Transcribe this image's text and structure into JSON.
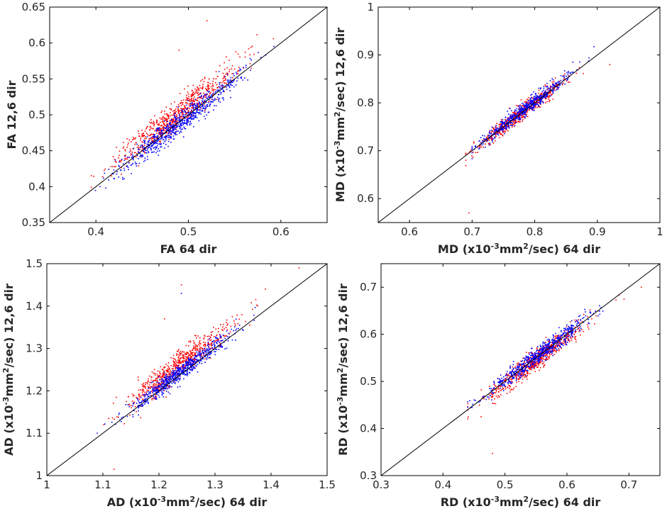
{
  "colors": {
    "series_a": "#ff0000",
    "series_b": "#0000ff",
    "identity": "#000000"
  },
  "chart_data": [
    {
      "type": "scatter",
      "name": "fa",
      "xlabel": "FA 64 dir",
      "ylabel": "FA 12,6 dir",
      "xlim": [
        0.35,
        0.65
      ],
      "ylim": [
        0.35,
        0.65
      ],
      "xticks": [
        0.4,
        0.5,
        0.6
      ],
      "xtick_labels": [
        "0.4",
        "0.5",
        "0.6"
      ],
      "yticks": [
        0.35,
        0.4,
        0.45,
        0.5,
        0.55,
        0.6,
        0.65
      ],
      "ytick_labels": [
        "0.35",
        "0.4",
        "0.45",
        "0.5",
        "0.55",
        "0.6",
        "0.65"
      ],
      "identity_line": true,
      "series": [
        {
          "name": "series_a",
          "color": "#ff0000",
          "trend": {
            "x_center": 0.485,
            "x_spread": 0.033,
            "x_min": 0.395,
            "x_max": 0.59,
            "slope": 1.0,
            "offset": 0.013,
            "noise": 0.01
          },
          "n_points": 700,
          "outliers": [
            [
              0.52,
              0.631
            ],
            [
              0.49,
              0.59
            ],
            [
              0.592,
              0.606
            ]
          ]
        },
        {
          "name": "series_b",
          "color": "#0000ff",
          "trend": {
            "x_center": 0.49,
            "x_spread": 0.033,
            "x_min": 0.395,
            "x_max": 0.595,
            "slope": 1.0,
            "offset": -0.002,
            "noise": 0.008
          },
          "n_points": 700,
          "outliers": []
        }
      ]
    },
    {
      "type": "scatter",
      "name": "md",
      "xlabel": "MD (x10-3mm2/sec) 64 dir",
      "ylabel": "MD (x10-3mm2/sec) 12,6 dir",
      "xlim": [
        0.55,
        1.0
      ],
      "ylim": [
        0.55,
        1.0
      ],
      "xticks": [
        0.6,
        0.7,
        0.8,
        0.9,
        1.0
      ],
      "xtick_labels": [
        "0.6",
        "0.7",
        "0.8",
        "0.9",
        "1"
      ],
      "yticks": [
        0.6,
        0.7,
        0.8,
        0.9,
        1.0
      ],
      "ytick_labels": [
        "0.6",
        "0.7",
        "0.8",
        "0.9",
        "1"
      ],
      "identity_line": true,
      "series": [
        {
          "name": "series_a",
          "color": "#ff0000",
          "trend": {
            "x_center": 0.775,
            "x_spread": 0.035,
            "x_min": 0.69,
            "x_max": 0.94,
            "slope": 1.0,
            "offset": 0.0,
            "noise": 0.008
          },
          "n_points": 600,
          "outliers": [
            [
              0.695,
              0.57
            ],
            [
              0.92,
              0.88
            ]
          ]
        },
        {
          "name": "series_b",
          "color": "#0000ff",
          "trend": {
            "x_center": 0.78,
            "x_spread": 0.035,
            "x_min": 0.7,
            "x_max": 0.945,
            "slope": 1.0,
            "offset": 0.003,
            "noise": 0.007
          },
          "n_points": 600,
          "outliers": []
        }
      ]
    },
    {
      "type": "scatter",
      "name": "ad",
      "xlabel": "AD (x10-3mm2/sec) 64 dir",
      "ylabel": "AD (x10-3mm2/sec) 12,6 dir",
      "xlim": [
        1.0,
        1.5
      ],
      "ylim": [
        1.0,
        1.5
      ],
      "xticks": [
        1.0,
        1.1,
        1.2,
        1.3,
        1.4,
        1.5
      ],
      "xtick_labels": [
        "1",
        "1.1",
        "1.2",
        "1.3",
        "1.4",
        "1.5"
      ],
      "yticks": [
        1.0,
        1.1,
        1.2,
        1.3,
        1.4,
        1.5
      ],
      "ytick_labels": [
        "1",
        "1.1",
        "1.2",
        "1.3",
        "1.4",
        "1.5"
      ],
      "identity_line": true,
      "series": [
        {
          "name": "series_a",
          "color": "#ff0000",
          "trend": {
            "x_center": 1.235,
            "x_spread": 0.045,
            "x_min": 1.1,
            "x_max": 1.45,
            "slope": 1.0,
            "offset": 0.025,
            "noise": 0.016
          },
          "n_points": 650,
          "outliers": [
            [
              1.12,
              1.015
            ],
            [
              1.24,
              1.45
            ],
            [
              1.21,
              1.37
            ],
            [
              1.45,
              1.49
            ],
            [
              1.39,
              1.44
            ]
          ]
        },
        {
          "name": "series_b",
          "color": "#0000ff",
          "trend": {
            "x_center": 1.24,
            "x_spread": 0.045,
            "x_min": 1.1,
            "x_max": 1.45,
            "slope": 1.0,
            "offset": 0.005,
            "noise": 0.01
          },
          "n_points": 650,
          "outliers": [
            [
              1.24,
              1.43
            ],
            [
              1.09,
              1.1
            ]
          ]
        }
      ]
    },
    {
      "type": "scatter",
      "name": "rd",
      "xlabel": "RD (x10-3mm2/sec) 64 dir",
      "ylabel": "RD (x10-3mm2/sec) 12,6 dir",
      "xlim": [
        0.3,
        0.75
      ],
      "ylim": [
        0.3,
        0.75
      ],
      "xticks": [
        0.3,
        0.4,
        0.5,
        0.6,
        0.7
      ],
      "xtick_labels": [
        "0.3",
        "0.4",
        "0.5",
        "0.6",
        "0.7"
      ],
      "yticks": [
        0.3,
        0.4,
        0.5,
        0.6,
        0.7
      ],
      "ytick_labels": [
        "0.3",
        "0.4",
        "0.5",
        "0.6",
        "0.7"
      ],
      "identity_line": true,
      "series": [
        {
          "name": "series_a",
          "color": "#ff0000",
          "trend": {
            "x_center": 0.55,
            "x_spread": 0.04,
            "x_min": 0.44,
            "x_max": 0.72,
            "slope": 1.0,
            "offset": -0.005,
            "noise": 0.011
          },
          "n_points": 650,
          "outliers": [
            [
              0.48,
              0.347
            ],
            [
              0.72,
              0.7
            ]
          ]
        },
        {
          "name": "series_b",
          "color": "#0000ff",
          "trend": {
            "x_center": 0.555,
            "x_spread": 0.04,
            "x_min": 0.44,
            "x_max": 0.72,
            "slope": 1.0,
            "offset": 0.002,
            "noise": 0.009
          },
          "n_points": 650,
          "outliers": []
        }
      ]
    }
  ]
}
